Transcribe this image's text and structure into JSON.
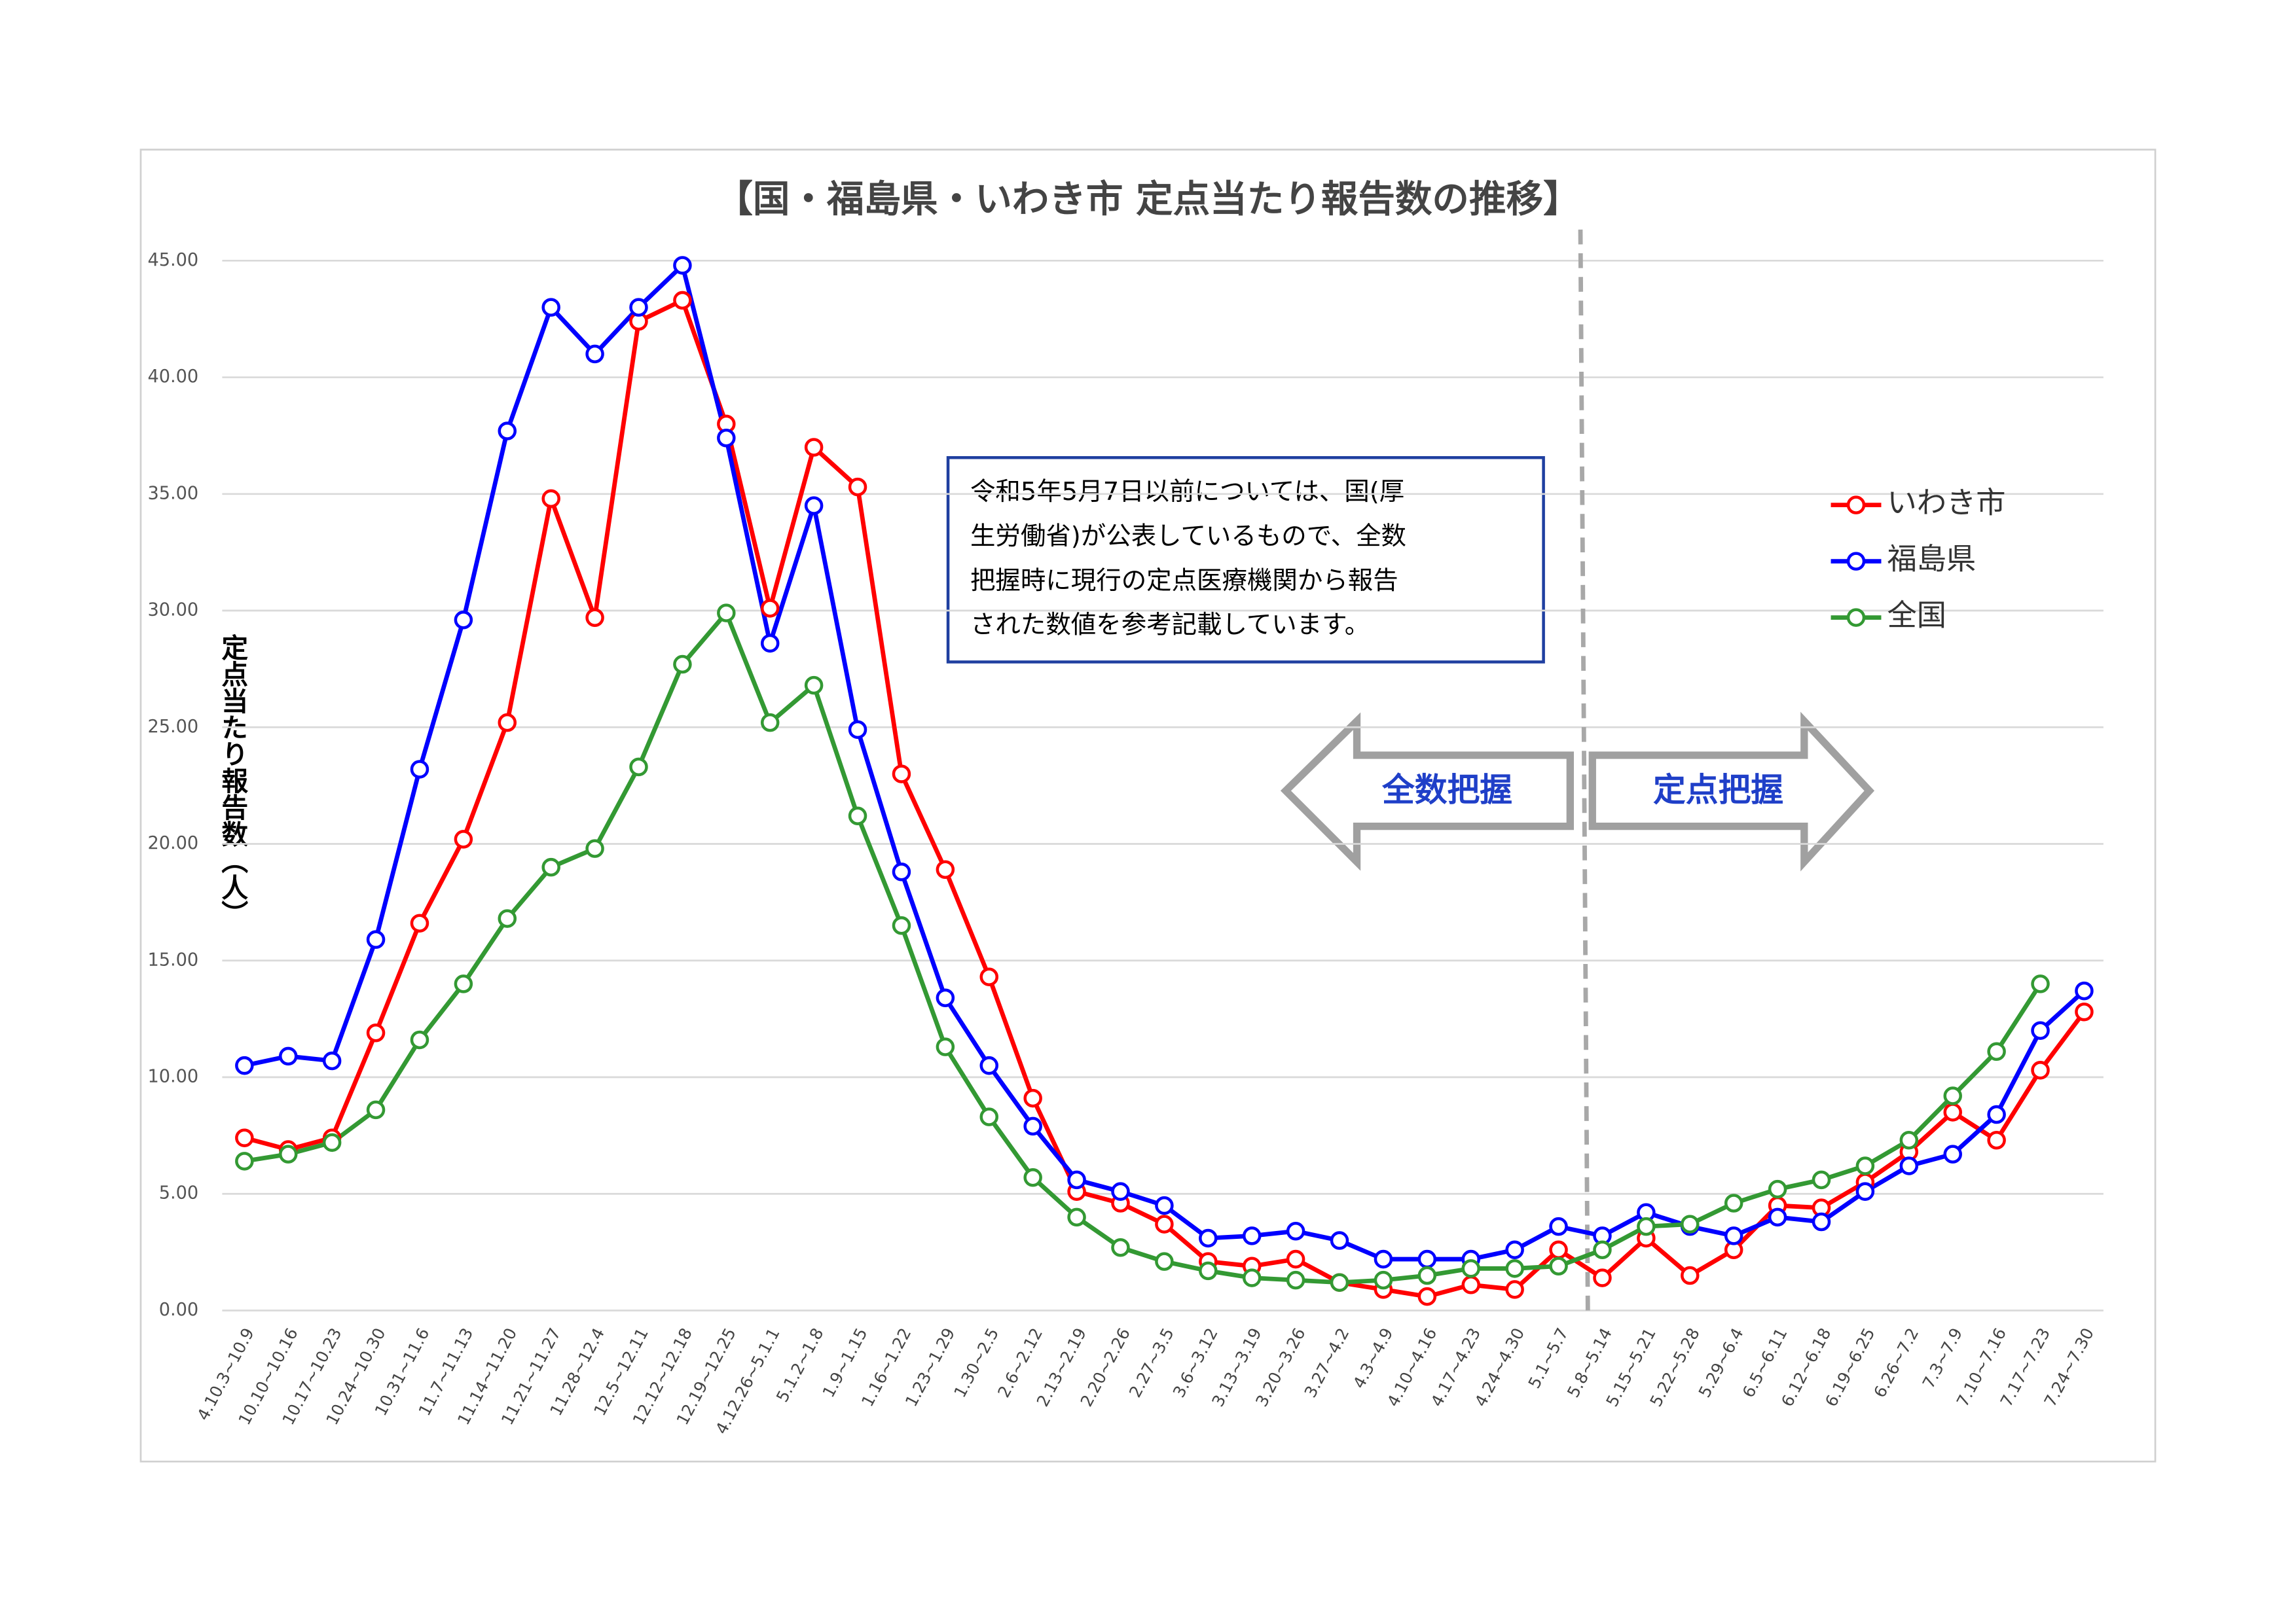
{
  "chart_data": {
    "type": "line",
    "title": "【国・福島県・いわき市 定点当たり報告数の推移】",
    "y_label": "定点当たり報告数（人）",
    "categories": [
      "4.10.3~10.9",
      "10.10~10.16",
      "10.17~10.23",
      "10.24~10.30",
      "10.31~11.6",
      "11.7~11.13",
      "11.14~11.20",
      "11.21~11.27",
      "11.28~12.4",
      "12.5~12.11",
      "12.12~12.18",
      "12.19~12.25",
      "4.12.26~5.1.1",
      "5.1.2~1.8",
      "1.9~1.15",
      "1.16~1.22",
      "1.23~1.29",
      "1.30~2.5",
      "2.6~2.12",
      "2.13~2.19",
      "2.20~2.26",
      "2.27~3.5",
      "3.6~3.12",
      "3.13~3.19",
      "3.20~3.26",
      "3.27~4.2",
      "4.3~4.9",
      "4.10~4.16",
      "4.17~4.23",
      "4.24~4.30",
      "5.1~5.7",
      "5.8~5.14",
      "5.15~5.21",
      "5.22~5.28",
      "5.29~6.4",
      "6.5~6.11",
      "6.12~6.18",
      "6.19~6.25",
      "6.26~7.2",
      "7.3~7.9",
      "7.10~7.16",
      "7.17~7.23",
      "7.24~7.30"
    ],
    "series": [
      {
        "name": "いわき市",
        "color": "#ff0000",
        "values": [
          7.4,
          6.9,
          7.4,
          11.9,
          16.6,
          20.2,
          25.2,
          34.8,
          29.7,
          42.4,
          43.3,
          38.0,
          30.1,
          37.0,
          35.3,
          23.0,
          18.9,
          14.3,
          9.1,
          5.1,
          4.6,
          3.7,
          2.1,
          1.9,
          2.2,
          1.2,
          0.9,
          0.6,
          1.1,
          0.9,
          2.6,
          1.4,
          3.1,
          1.5,
          2.6,
          4.5,
          4.4,
          5.5,
          6.8,
          8.5,
          7.3,
          10.3,
          12.8
        ]
      },
      {
        "name": "福島県",
        "color": "#0000ff",
        "values": [
          10.5,
          10.9,
          10.7,
          15.9,
          23.2,
          29.6,
          37.7,
          43.0,
          41.0,
          43.0,
          44.8,
          37.4,
          28.6,
          34.5,
          24.9,
          18.8,
          13.4,
          10.5,
          7.9,
          5.6,
          5.1,
          4.5,
          3.1,
          3.2,
          3.4,
          3.0,
          2.2,
          2.2,
          2.2,
          2.6,
          3.6,
          3.2,
          4.2,
          3.6,
          3.2,
          4.0,
          3.8,
          5.1,
          6.2,
          6.7,
          8.4,
          12.0,
          13.7
        ]
      },
      {
        "name": "全国",
        "color": "#339933",
        "values": [
          6.4,
          6.7,
          7.2,
          8.6,
          11.6,
          14.0,
          16.8,
          19.0,
          19.8,
          23.3,
          27.7,
          29.9,
          25.2,
          26.8,
          21.2,
          16.5,
          11.3,
          8.3,
          5.7,
          4.0,
          2.7,
          2.1,
          1.7,
          1.4,
          1.3,
          1.2,
          1.3,
          1.5,
          1.8,
          1.8,
          1.9,
          2.6,
          3.6,
          3.7,
          4.6,
          5.2,
          5.6,
          6.2,
          7.3,
          9.2,
          11.1,
          14.0,
          null
        ]
      }
    ],
    "ylim": [
      0,
      45
    ],
    "yticks": [
      {
        "value": 0,
        "label": "0.00"
      },
      {
        "value": 5,
        "label": "5.00"
      },
      {
        "value": 10,
        "label": "10.00"
      },
      {
        "value": 15,
        "label": "15.00"
      },
      {
        "value": 20,
        "label": "20.00"
      },
      {
        "value": 25,
        "label": "25.00"
      },
      {
        "value": 30,
        "label": "30.00"
      },
      {
        "value": 35,
        "label": "35.00"
      },
      {
        "value": 40,
        "label": "40.00"
      },
      {
        "value": 45,
        "label": "45.00"
      }
    ],
    "grid": true,
    "legend": "right",
    "note_lines": [
      "令和5年5月7日以前については、国(厚",
      "生労働省)が公表しているもので、全数",
      "把握時に現行の定点医療機関から報告",
      "された数値を参考記載しています。"
    ],
    "left_arrow_label": "全数把握",
    "right_arrow_label": "定点把握"
  }
}
